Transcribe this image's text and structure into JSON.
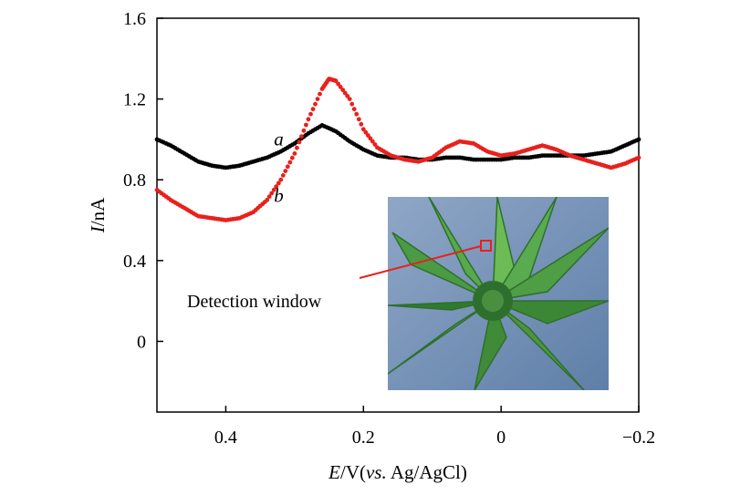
{
  "chart_data": {
    "type": "scatter",
    "title": "",
    "xlabel": {
      "italic": "E",
      "rest": "/V(",
      "italic2": "vs.",
      "rest2": " Ag/AgCl)"
    },
    "ylabel": {
      "italic": "I",
      "rest": "/nA"
    },
    "xlim": [
      0.5,
      -0.2
    ],
    "ylim": [
      -0.35,
      1.6
    ],
    "x_ticks": [
      0.4,
      0.2,
      0,
      -0.2
    ],
    "x_tick_labels": [
      "0.4",
      "0.2",
      "0",
      "−0.2"
    ],
    "y_ticks": [
      0,
      0.4,
      0.8,
      1.2,
      1.6
    ],
    "y_tick_labels": [
      "0",
      "0.4",
      "0.8",
      "1.2",
      "1.6"
    ],
    "grid": false,
    "series": [
      {
        "name": "a",
        "color": "#000000",
        "points": [
          [
            0.5,
            1.0
          ],
          [
            0.48,
            0.97
          ],
          [
            0.46,
            0.93
          ],
          [
            0.44,
            0.89
          ],
          [
            0.42,
            0.87
          ],
          [
            0.4,
            0.86
          ],
          [
            0.38,
            0.87
          ],
          [
            0.36,
            0.89
          ],
          [
            0.34,
            0.91
          ],
          [
            0.32,
            0.94
          ],
          [
            0.3,
            0.98
          ],
          [
            0.28,
            1.03
          ],
          [
            0.26,
            1.07
          ],
          [
            0.24,
            1.04
          ],
          [
            0.22,
            0.99
          ],
          [
            0.2,
            0.95
          ],
          [
            0.18,
            0.92
          ],
          [
            0.16,
            0.91
          ],
          [
            0.14,
            0.91
          ],
          [
            0.12,
            0.9
          ],
          [
            0.1,
            0.9
          ],
          [
            0.08,
            0.91
          ],
          [
            0.06,
            0.91
          ],
          [
            0.04,
            0.9
          ],
          [
            0.02,
            0.9
          ],
          [
            0.0,
            0.9
          ],
          [
            -0.02,
            0.91
          ],
          [
            -0.04,
            0.91
          ],
          [
            -0.06,
            0.92
          ],
          [
            -0.08,
            0.92
          ],
          [
            -0.1,
            0.92
          ],
          [
            -0.12,
            0.92
          ],
          [
            -0.14,
            0.93
          ],
          [
            -0.16,
            0.94
          ],
          [
            -0.18,
            0.97
          ],
          [
            -0.2,
            1.0
          ]
        ]
      },
      {
        "name": "b",
        "color": "#e8211c",
        "points": [
          [
            0.5,
            0.75
          ],
          [
            0.48,
            0.7
          ],
          [
            0.46,
            0.66
          ],
          [
            0.44,
            0.62
          ],
          [
            0.42,
            0.61
          ],
          [
            0.4,
            0.6
          ],
          [
            0.38,
            0.61
          ],
          [
            0.36,
            0.64
          ],
          [
            0.34,
            0.7
          ],
          [
            0.32,
            0.8
          ],
          [
            0.3,
            0.93
          ],
          [
            0.28,
            1.1
          ],
          [
            0.26,
            1.25
          ],
          [
            0.25,
            1.3
          ],
          [
            0.24,
            1.29
          ],
          [
            0.22,
            1.2
          ],
          [
            0.2,
            1.05
          ],
          [
            0.18,
            0.96
          ],
          [
            0.16,
            0.92
          ],
          [
            0.14,
            0.9
          ],
          [
            0.12,
            0.89
          ],
          [
            0.1,
            0.91
          ],
          [
            0.08,
            0.96
          ],
          [
            0.06,
            0.99
          ],
          [
            0.04,
            0.98
          ],
          [
            0.02,
            0.94
          ],
          [
            0.0,
            0.92
          ],
          [
            -0.02,
            0.93
          ],
          [
            -0.04,
            0.95
          ],
          [
            -0.06,
            0.97
          ],
          [
            -0.08,
            0.95
          ],
          [
            -0.1,
            0.92
          ],
          [
            -0.12,
            0.9
          ],
          [
            -0.14,
            0.88
          ],
          [
            -0.16,
            0.86
          ],
          [
            -0.18,
            0.88
          ],
          [
            -0.2,
            0.91
          ]
        ]
      }
    ],
    "curve_labels": [
      {
        "text": "a",
        "x": 0.33,
        "y": 0.97
      },
      {
        "text": "b",
        "x": 0.33,
        "y": 0.69
      }
    ],
    "annotation": {
      "text": "Detection window"
    }
  }
}
